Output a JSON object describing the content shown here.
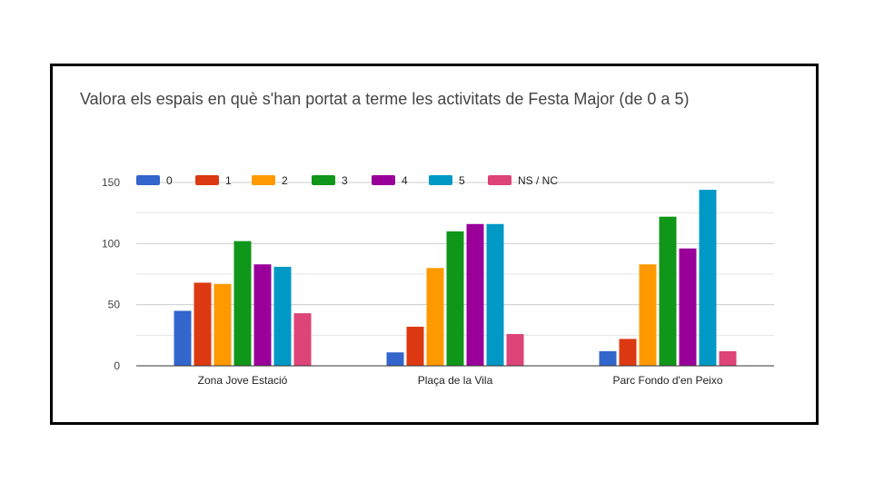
{
  "chart_data": {
    "type": "bar",
    "title": "Valora els espais en què s'han portat a terme les activitats de Festa Major (de 0 a 5)",
    "categories": [
      "Zona Jove Estació",
      "Plaça de la Vila",
      "Parc Fondo d'en Peixo"
    ],
    "series": [
      {
        "name": "0",
        "color": "#3366cc",
        "values": [
          45,
          11,
          12
        ]
      },
      {
        "name": "1",
        "color": "#dc3912",
        "values": [
          68,
          32,
          22
        ]
      },
      {
        "name": "2",
        "color": "#ff9900",
        "values": [
          67,
          80,
          83
        ]
      },
      {
        "name": "3",
        "color": "#109618",
        "values": [
          102,
          110,
          122
        ]
      },
      {
        "name": "4",
        "color": "#990099",
        "values": [
          83,
          116,
          96
        ]
      },
      {
        "name": "5",
        "color": "#0099c6",
        "values": [
          81,
          116,
          144
        ]
      },
      {
        "name": "NS / NC",
        "color": "#dd4477",
        "values": [
          43,
          26,
          12
        ]
      }
    ],
    "y_ticks": [
      "0",
      "50",
      "100",
      "150"
    ],
    "ylim": [
      0,
      150
    ],
    "grid": true,
    "legend_position": "top-left"
  }
}
